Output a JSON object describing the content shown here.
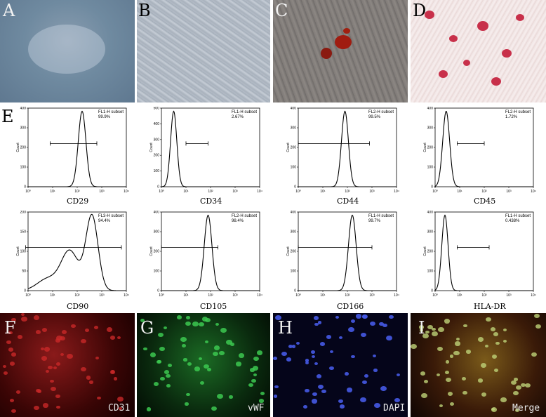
{
  "panels": {
    "A": "A",
    "B": "B",
    "C": "C",
    "D": "D",
    "E": "E",
    "F": "F",
    "G": "G",
    "H": "H",
    "I": "I"
  },
  "histograms": [
    {
      "marker": "CD29",
      "gate": "FL1-H subset",
      "percent": "99.9%",
      "ymax": 400,
      "yticks": [
        0,
        100,
        200,
        300,
        400
      ],
      "peak": 2.2,
      "width": 0.22,
      "range": [
        0.9,
        2.8
      ]
    },
    {
      "marker": "CD34",
      "gate": "FL1-H subset",
      "percent": "2.67%",
      "ymax": 500,
      "yticks": [
        0,
        100,
        200,
        300,
        400,
        500
      ],
      "peak": 0.5,
      "width": 0.18,
      "range": [
        1.0,
        1.9
      ]
    },
    {
      "marker": "CD44",
      "gate": "FL2-H subset",
      "percent": "99.5%",
      "ymax": 400,
      "yticks": [
        0,
        100,
        200,
        300,
        400
      ],
      "peak": 1.9,
      "width": 0.2,
      "range": [
        0.0,
        2.9
      ]
    },
    {
      "marker": "CD45",
      "gate": "FL2-H subset",
      "percent": "1.72%",
      "ymax": 400,
      "yticks": [
        0,
        100,
        200,
        300,
        400
      ],
      "peak": 0.45,
      "width": 0.2,
      "range": [
        0.9,
        2.0
      ]
    },
    {
      "marker": "CD90",
      "gate": "FL3-H subset",
      "percent": "94.4%",
      "ymax": 200,
      "yticks": [
        0,
        50,
        100,
        150,
        200
      ],
      "peak": 2.6,
      "width": 0.5,
      "range": [
        -0.1,
        3.8
      ],
      "broad": true
    },
    {
      "marker": "CD105",
      "gate": "FL2-H subset",
      "percent": "98.4%",
      "ymax": 400,
      "yticks": [
        0,
        100,
        200,
        300,
        400
      ],
      "peak": 1.9,
      "width": 0.22,
      "range": [
        0.0,
        2.3
      ]
    },
    {
      "marker": "CD166",
      "gate": "FL1-H subset",
      "percent": "99.7%",
      "ymax": 400,
      "yticks": [
        0,
        100,
        200,
        300,
        400
      ],
      "peak": 2.2,
      "width": 0.22,
      "range": [
        0.0,
        3.0
      ]
    },
    {
      "marker": "HLA-DR",
      "gate": "FL1-H subset",
      "percent": "0.438%",
      "ymax": 400,
      "yticks": [
        0,
        100,
        200,
        300,
        400
      ],
      "peak": 0.4,
      "width": 0.18,
      "range": [
        0.9,
        2.2
      ]
    }
  ],
  "xticks": [
    "10⁰",
    "10¹",
    "10²",
    "10³",
    "10⁴"
  ],
  "ylabel": "Count",
  "fluor_labels": {
    "F": "CD31",
    "G": "vWF",
    "H": "DAPI",
    "I": "Merge"
  },
  "colors": {
    "red": "#d22a2a",
    "green": "#35c24a",
    "blue": "#3a4fd8",
    "stain": "#c8304a"
  }
}
